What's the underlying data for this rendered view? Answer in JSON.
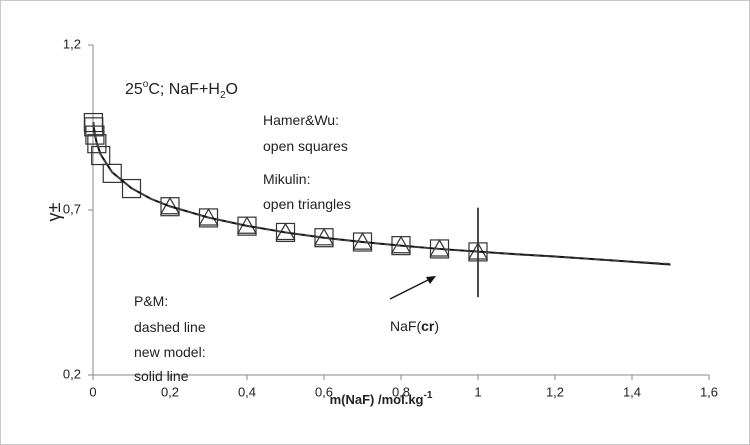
{
  "chart_data": {
    "type": "scatter",
    "y_label": "γ±",
    "x_label": {
      "parts": [
        "m(NaF) /mol.kg",
        "-1"
      ]
    },
    "annotations": [
      {
        "parts": [
          "25",
          "o",
          "C; NaF+H",
          "2",
          "O"
        ]
      },
      {
        "parts": [
          "Hamer&Wu:"
        ]
      },
      {
        "parts": [
          "open squares"
        ]
      },
      {
        "parts": [
          "Mikulin:"
        ]
      },
      {
        "parts": [
          " open triangles"
        ]
      },
      {
        "parts": [
          "P&M:"
        ]
      },
      {
        "parts": [
          "dashed line"
        ]
      },
      {
        "parts": [
          "new model:"
        ]
      },
      {
        "parts": [
          "solid line"
        ]
      },
      {
        "parts": [
          "NaF(",
          "cr",
          ")"
        ]
      }
    ],
    "xlim": [
      0,
      1.6
    ],
    "ylim": [
      0.2,
      1.2
    ],
    "xticks": [
      0,
      {
        "value": 0.2,
        "label": "0,2"
      },
      {
        "value": 0.4,
        "label": "0,4"
      },
      {
        "value": 0.6,
        "label": "0,6"
      },
      {
        "value": 0.8,
        "label": "0,8"
      },
      1,
      {
        "value": 1.2,
        "label": "1,2"
      },
      {
        "value": 1.4,
        "label": "1,4"
      },
      {
        "value": 1.6,
        "label": "1,6"
      }
    ],
    "yticks": [
      {
        "value": 0.2,
        "label": "0,2"
      },
      {
        "value": 0.7,
        "label": "0,7"
      },
      {
        "value": 1.2,
        "label": "1,2"
      }
    ],
    "solubility_line": {
      "x": 1,
      "y": [
        0.707,
        0.436
      ]
    },
    "series": [
      {
        "marker": "square",
        "color": "#333333",
        "x": [
          0.001,
          0.002,
          0.005,
          0.01,
          0.02,
          0.05,
          0.1,
          0.2,
          0.3,
          0.4,
          0.5,
          0.6,
          0.7,
          0.8,
          0.9,
          1.0
        ],
        "values": [
          0.965,
          0.952,
          0.927,
          0.901,
          0.865,
          0.811,
          0.765,
          0.71,
          0.676,
          0.651,
          0.632,
          0.616,
          0.603,
          0.592,
          0.582,
          0.573
        ]
      },
      {
        "marker": "triangle",
        "color": "#333333",
        "x": [
          0.2,
          0.3,
          0.4,
          0.5,
          0.6,
          0.7,
          0.8,
          0.9,
          1.0
        ],
        "values": [
          0.709,
          0.675,
          0.65,
          0.631,
          0.615,
          0.602,
          0.591,
          0.581,
          0.572
        ]
      },
      {
        "line": "solid",
        "color": "#111111",
        "x": [
          0.001,
          0.002,
          0.005,
          0.01,
          0.02,
          0.05,
          0.1,
          0.15,
          0.2,
          0.3,
          0.4,
          0.5,
          0.6,
          0.7,
          0.8,
          0.9,
          1.0,
          1.1,
          1.2,
          1.3,
          1.4,
          1.5
        ],
        "values": [
          0.966,
          0.953,
          0.928,
          0.902,
          0.868,
          0.814,
          0.766,
          0.734,
          0.711,
          0.677,
          0.652,
          0.632,
          0.616,
          0.603,
          0.592,
          0.582,
          0.574,
          0.566,
          0.559,
          0.551,
          0.543,
          0.535
        ]
      },
      {
        "line": "dashed",
        "color": "#444444",
        "x": [
          0.001,
          0.002,
          0.005,
          0.01,
          0.02,
          0.05,
          0.1,
          0.15,
          0.2,
          0.3,
          0.4,
          0.5,
          0.6,
          0.7,
          0.8,
          0.9,
          1.0,
          1.1,
          1.2,
          1.3,
          1.4,
          1.5
        ],
        "values": [
          0.966,
          0.953,
          0.928,
          0.902,
          0.868,
          0.814,
          0.766,
          0.734,
          0.711,
          0.677,
          0.652,
          0.632,
          0.616,
          0.603,
          0.592,
          0.582,
          0.573,
          0.565,
          0.558,
          0.551,
          0.544,
          0.537
        ]
      }
    ]
  }
}
